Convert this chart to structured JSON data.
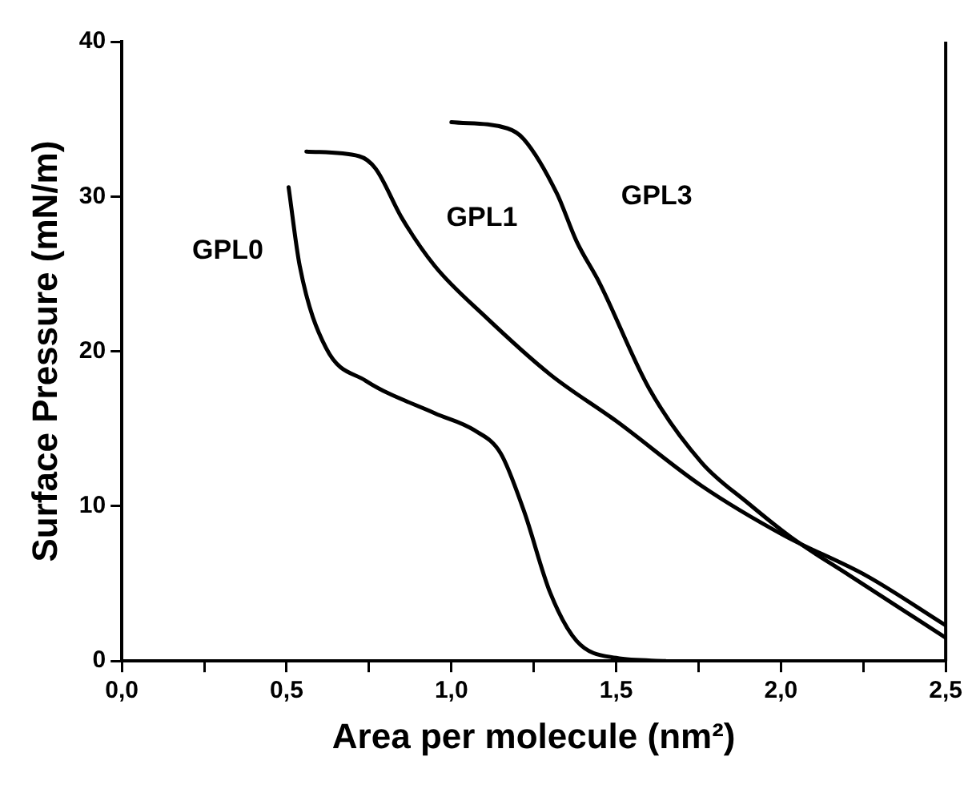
{
  "chart_data": {
    "type": "line",
    "xlabel": "Area per molecule (nm²)",
    "ylabel": "Surface Pressure (mN/m)",
    "xlim": [
      0,
      2.5
    ],
    "ylim": [
      0,
      40
    ],
    "xticks": [
      {
        "value": 0,
        "label": "0,0"
      },
      {
        "value": 0.25,
        "label": null
      },
      {
        "value": 0.5,
        "label": "0,5"
      },
      {
        "value": 0.75,
        "label": null
      },
      {
        "value": 1,
        "label": "1,0"
      },
      {
        "value": 1.25,
        "label": null
      },
      {
        "value": 1.5,
        "label": "1,5"
      },
      {
        "value": 1.75,
        "label": null
      },
      {
        "value": 2,
        "label": "2,0"
      },
      {
        "value": 2.25,
        "label": null
      },
      {
        "value": 2.5,
        "label": "2,5"
      }
    ],
    "yticks": [
      0,
      10,
      20,
      30,
      40
    ],
    "grid": false,
    "legend": false,
    "marker": "none",
    "line_style": "solid",
    "series": [
      {
        "name": "GPL0",
        "color": "#000000",
        "x": [
          0.506,
          0.54,
          0.62,
          0.74,
          0.95,
          1.07,
          1.15,
          1.22,
          1.3,
          1.38,
          1.5,
          1.65
        ],
        "values": [
          30.6,
          25.5,
          20.2,
          18.1,
          16,
          14.9,
          13.4,
          9.7,
          4.4,
          1.3,
          0.2,
          0
        ]
      },
      {
        "name": "GPL1",
        "color": "#000000",
        "x": [
          0.56,
          0.72,
          0.77,
          0.85,
          0.95,
          1.1,
          1.3,
          1.5,
          1.76,
          2.01,
          2.26,
          2.5
        ],
        "values": [
          32.9,
          32.6,
          31.8,
          28.6,
          25.5,
          22.3,
          18.5,
          15.5,
          11.3,
          8.1,
          5.5,
          2.3
        ]
      },
      {
        "name": "GPL3",
        "color": "#000000",
        "x": [
          1,
          1.17,
          1.22,
          1.32,
          1.38,
          1.45,
          1.6,
          1.76,
          1.9,
          2.03,
          2.21,
          2.5
        ],
        "values": [
          34.8,
          34.4,
          33.7,
          30.2,
          27.1,
          24.4,
          17.6,
          12.8,
          10.2,
          8,
          5.5,
          1.5
        ]
      }
    ]
  }
}
